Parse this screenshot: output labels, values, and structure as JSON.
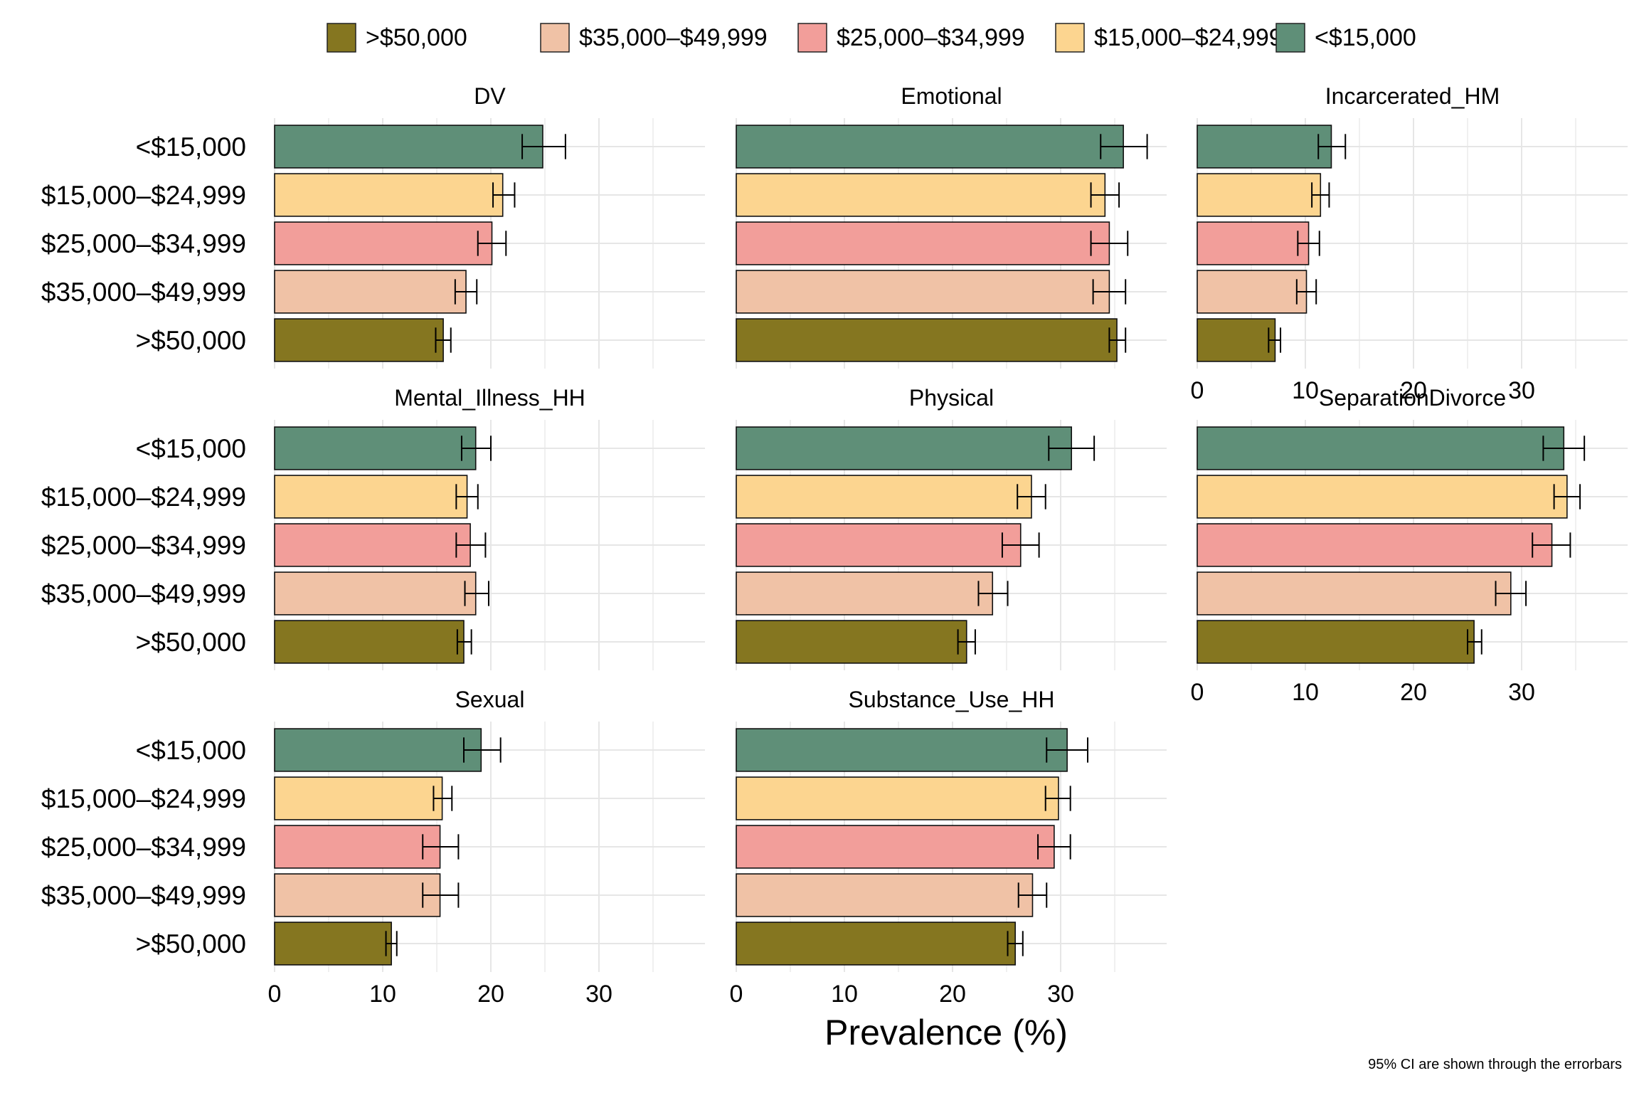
{
  "chart_data": {
    "type": "bar",
    "orientation": "horizontal",
    "legend": {
      "position": "top",
      "entries": [
        ">$50,000",
        "$35,000–$49,999",
        "$25,000–$34,999",
        "$15,000–$24,999",
        "<$15,000"
      ]
    },
    "categories": [
      "<$15,000",
      "$15,000–$24,999",
      "$25,000–$34,999",
      "$35,000–$49,999",
      ">$50,000"
    ],
    "colors": {
      "<$15,000": "#5f8f78",
      "$15,000–$24,999": "#fcd590",
      "$25,000–$34,999": "#f29e9a",
      "$35,000–$49,999": "#f0c2a6",
      ">$50,000": "#857620"
    },
    "xlabel": "Prevalence (%)",
    "ylabel": "",
    "xlim": [
      0,
      40
    ],
    "x_ticks": [
      "0",
      "10",
      "20",
      "30"
    ],
    "grid": true,
    "panels": [
      {
        "title": "DV",
        "values": [
          24.8,
          21.1,
          20.1,
          17.7,
          15.6
        ],
        "ci_low": [
          22.9,
          20.2,
          18.8,
          16.7,
          14.9
        ],
        "ci_high": [
          26.9,
          22.2,
          21.4,
          18.7,
          16.3
        ]
      },
      {
        "title": "Emotional",
        "values": [
          35.8,
          34.1,
          34.5,
          34.5,
          35.2
        ],
        "ci_low": [
          33.7,
          32.8,
          32.8,
          33.0,
          34.5
        ],
        "ci_high": [
          38.0,
          35.4,
          36.2,
          36.0,
          36.0
        ]
      },
      {
        "title": "Incarcerated_HM",
        "values": [
          12.4,
          11.4,
          10.3,
          10.1,
          7.2
        ],
        "ci_low": [
          11.2,
          10.6,
          9.3,
          9.2,
          6.6
        ],
        "ci_high": [
          13.7,
          12.2,
          11.3,
          11.0,
          7.7
        ]
      },
      {
        "title": "Mental_Illness_HH",
        "values": [
          18.6,
          17.8,
          18.1,
          18.6,
          17.5
        ],
        "ci_low": [
          17.3,
          16.8,
          16.8,
          17.6,
          16.9
        ],
        "ci_high": [
          20.0,
          18.8,
          19.5,
          19.8,
          18.2
        ]
      },
      {
        "title": "Physical",
        "values": [
          31.0,
          27.3,
          26.3,
          23.7,
          21.3
        ],
        "ci_low": [
          28.9,
          26.0,
          24.6,
          22.4,
          20.5
        ],
        "ci_high": [
          33.1,
          28.6,
          28.0,
          25.1,
          22.1
        ]
      },
      {
        "title": "SeparationDivorce",
        "values": [
          33.9,
          34.2,
          32.8,
          29.0,
          25.6
        ],
        "ci_low": [
          32.0,
          33.0,
          31.0,
          27.6,
          25.0
        ],
        "ci_high": [
          35.8,
          35.4,
          34.5,
          30.4,
          26.3
        ]
      },
      {
        "title": "Sexual",
        "values": [
          19.1,
          15.5,
          15.3,
          15.3,
          10.8
        ],
        "ci_low": [
          17.5,
          14.7,
          13.7,
          13.7,
          10.3
        ],
        "ci_high": [
          20.9,
          16.4,
          17.0,
          17.0,
          11.3
        ]
      },
      {
        "title": "Substance_Use_HH",
        "values": [
          30.6,
          29.8,
          29.4,
          27.4,
          25.8
        ],
        "ci_low": [
          28.7,
          28.6,
          27.9,
          26.1,
          25.1
        ],
        "ci_high": [
          32.5,
          30.9,
          30.9,
          28.7,
          26.5
        ]
      }
    ],
    "note": "95% CI are shown through the errorbars"
  }
}
